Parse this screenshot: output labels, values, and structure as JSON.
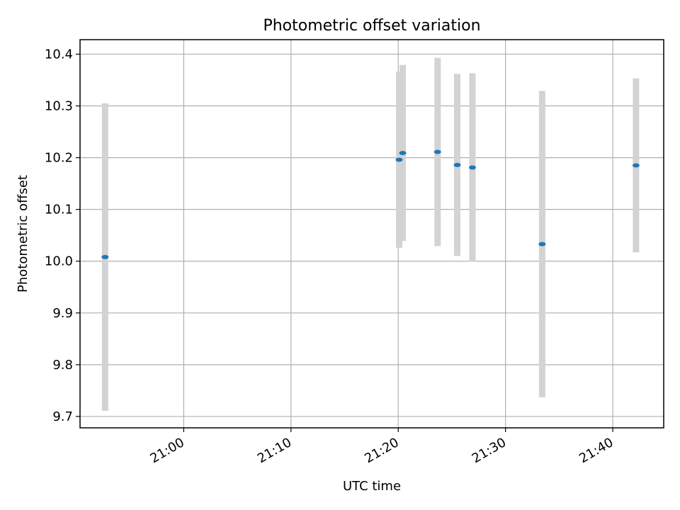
{
  "chart_data": {
    "type": "scatter",
    "title": "Photometric offset variation",
    "xlabel": "UTC time",
    "ylabel": "Photometric offset",
    "x_ticks": [
      "21:00",
      "21:10",
      "21:20",
      "21:30",
      "21:40"
    ],
    "y_ticks": [
      "9.7",
      "9.8",
      "9.9",
      "10.0",
      "10.1",
      "10.2",
      "10.3",
      "10.4"
    ],
    "xlim": [
      "20:50:20",
      "21:44:45"
    ],
    "ylim": [
      9.678,
      10.428
    ],
    "grid": true,
    "colors": {
      "marker": "#1f77b4",
      "errorbar": "#d3d3d3",
      "grid": "#b0b0b0"
    },
    "points": [
      {
        "x": "20:52:40",
        "y": 10.008,
        "yerr": 0.297
      },
      {
        "x": "21:20:05",
        "y": 10.196,
        "yerr": 0.17
      },
      {
        "x": "21:20:25",
        "y": 10.209,
        "yerr": 0.17
      },
      {
        "x": "21:23:40",
        "y": 10.211,
        "yerr": 0.182
      },
      {
        "x": "21:25:30",
        "y": 10.186,
        "yerr": 0.176
      },
      {
        "x": "21:26:55",
        "y": 10.181,
        "yerr": 0.182
      },
      {
        "x": "21:33:25",
        "y": 10.033,
        "yerr": 0.296
      },
      {
        "x": "21:42:10",
        "y": 10.185,
        "yerr": 0.168
      }
    ]
  }
}
